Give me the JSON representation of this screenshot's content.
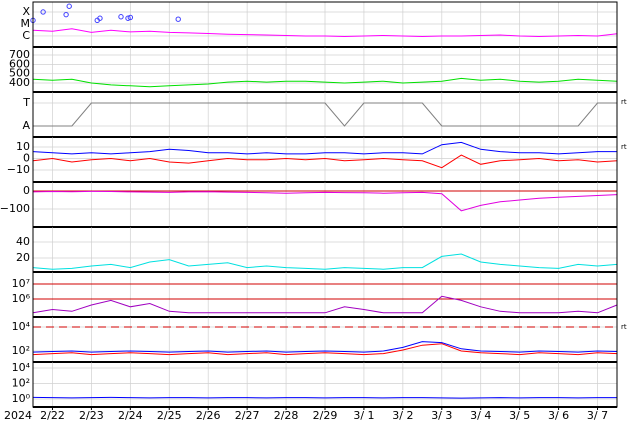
{
  "chart_data": [
    {
      "type": "line",
      "log_y": true,
      "ylim": [
        1.2e-07,
        0.00068
      ],
      "yticks": [
        {
          "value": 0.0001,
          "label": "X"
        },
        {
          "value": 1e-05,
          "label": "M"
        },
        {
          "value": 1e-06,
          "label": "C"
        }
      ],
      "x": [
        0,
        0.5,
        1,
        1.5,
        2,
        2.5,
        3,
        3.5,
        4,
        4.5,
        5,
        5.5,
        6,
        6.5,
        7,
        7.5,
        8,
        8.5,
        9,
        9.5,
        10,
        10.5,
        11,
        11.5,
        12,
        12.5,
        13,
        13.5,
        14,
        14.5,
        15
      ],
      "series": [
        {
          "color": "#ff00ff",
          "values": [
            3e-06,
            2.5e-06,
            4e-06,
            2e-06,
            3e-06,
            2.2e-06,
            2.5e-06,
            2e-06,
            1.8e-06,
            1.6e-06,
            1.4e-06,
            1.3e-06,
            1.2e-06,
            1.1e-06,
            1e-06,
            1e-06,
            9e-07,
            1e-06,
            1.1e-06,
            1e-06,
            9e-07,
            1e-06,
            1e-06,
            1.1e-06,
            1.2e-06,
            1e-06,
            9e-07,
            1e-06,
            1.1e-06,
            1e-06,
            1.5e-06
          ]
        }
      ],
      "flares": {
        "color": "#4040ff",
        "x": [
          0,
          0.26,
          0.85,
          0.93,
          1.65,
          1.72,
          2.26,
          2.44,
          2.5,
          3.73
        ],
        "values": [
          2e-05,
          0.0001,
          6e-05,
          0.0003,
          2e-05,
          3e-05,
          4e-05,
          3e-05,
          3.5e-05,
          2.5e-05
        ]
      }
    },
    {
      "type": "line",
      "ylim": [
        304,
        786
      ],
      "yticks": [
        700,
        600,
        500,
        400
      ],
      "x": [
        0,
        0.5,
        1,
        1.5,
        2,
        2.5,
        3,
        3.5,
        4,
        4.5,
        5,
        5.5,
        6,
        6.5,
        7,
        7.5,
        8,
        8.5,
        9,
        9.5,
        10,
        10.5,
        11,
        11.5,
        12,
        12.5,
        13,
        13.5,
        14,
        14.5,
        15
      ],
      "series": [
        {
          "color": "#00e000",
          "values": [
            440,
            430,
            440,
            400,
            380,
            370,
            360,
            370,
            380,
            390,
            410,
            420,
            410,
            420,
            420,
            410,
            400,
            410,
            420,
            400,
            410,
            420,
            450,
            430,
            440,
            420,
            410,
            420,
            440,
            430,
            420
          ]
        }
      ]
    },
    {
      "type": "line",
      "ylim": [
        -0.48,
        1.48
      ],
      "side_label": "rt",
      "yticks": [
        {
          "value": 1,
          "label": "T"
        },
        {
          "value": 0,
          "label": "A"
        }
      ],
      "x": [
        0,
        0.5,
        1,
        1.5,
        2,
        2.5,
        3,
        3.5,
        4,
        4.5,
        5,
        5.5,
        6,
        6.5,
        7,
        7.5,
        8,
        8.5,
        9,
        9.5,
        10,
        10.5,
        11,
        11.5,
        12,
        12.5,
        13,
        13.5,
        14,
        14.5,
        15
      ],
      "series": [
        {
          "color": "#808080",
          "values": [
            0,
            0,
            0,
            1,
            1,
            1,
            1,
            1,
            1,
            1,
            1,
            1,
            1,
            1,
            1,
            1,
            0,
            1,
            1,
            1,
            1,
            0,
            0,
            0,
            0,
            0,
            0,
            0,
            0,
            1,
            1
          ]
        }
      ]
    },
    {
      "type": "line",
      "ylim": [
        -20.4,
        18.7
      ],
      "side_label": "rt",
      "yticks": [
        10,
        0,
        {
          "value": -10,
          "label": "−10"
        }
      ],
      "x": [
        0,
        0.5,
        1,
        1.5,
        2,
        2.5,
        3,
        3.5,
        4,
        4.5,
        5,
        5.5,
        6,
        6.5,
        7,
        7.5,
        8,
        8.5,
        9,
        9.5,
        10,
        10.5,
        11,
        11.5,
        12,
        12.5,
        13,
        13.5,
        14,
        14.5,
        15
      ],
      "series": [
        {
          "color": "#0000ff",
          "values": [
            6,
            5,
            4,
            5,
            4,
            5,
            6,
            8,
            7,
            5,
            5,
            4,
            5,
            4,
            4,
            5,
            5,
            4,
            5,
            5,
            4,
            12,
            14,
            8,
            6,
            5,
            5,
            4,
            5,
            6,
            6
          ]
        },
        {
          "color": "#ff0000",
          "values": [
            -2,
            0,
            -3,
            -1,
            0,
            -2,
            0,
            -3,
            -4,
            -2,
            0,
            -1,
            -1,
            0,
            -1,
            0,
            -2,
            -1,
            0,
            -1,
            -2,
            -8,
            3,
            -5,
            -2,
            -1,
            0,
            -2,
            -1,
            -3,
            -2
          ]
        }
      ]
    },
    {
      "type": "line",
      "ylim": [
        -200,
        50
      ],
      "yticks": [
        0,
        {
          "value": -100,
          "label": "−100"
        }
      ],
      "ref_lines": [
        {
          "value": 0,
          "color": "#d00000"
        }
      ],
      "x": [
        0,
        0.5,
        1,
        1.5,
        2,
        2.5,
        3,
        3.5,
        4,
        4.5,
        5,
        5.5,
        6,
        6.5,
        7,
        7.5,
        8,
        8.5,
        9,
        9.5,
        10,
        10.5,
        11,
        11.5,
        12,
        12.5,
        13,
        13.5,
        14,
        14.5,
        15
      ],
      "series": [
        {
          "color": "#e000e0",
          "values": [
            -5,
            -3,
            -4,
            -2,
            -3,
            -5,
            -6,
            -8,
            -5,
            -4,
            -6,
            -8,
            -10,
            -12,
            -10,
            -8,
            -9,
            -10,
            -12,
            -10,
            -8,
            -15,
            -110,
            -80,
            -60,
            -50,
            -40,
            -35,
            -30,
            -25,
            -20
          ]
        }
      ]
    },
    {
      "type": "line",
      "ylim": [
        2.5,
        58.75
      ],
      "yticks": [
        40,
        20
      ],
      "x": [
        0,
        0.5,
        1,
        1.5,
        2,
        2.5,
        3,
        3.5,
        4,
        4.5,
        5,
        5.5,
        6,
        6.5,
        7,
        7.5,
        8,
        8.5,
        9,
        9.5,
        10,
        10.5,
        11,
        11.5,
        12,
        12.5,
        13,
        13.5,
        14,
        14.5,
        15
      ],
      "series": [
        {
          "color": "#00e0e0",
          "values": [
            8,
            6,
            7,
            10,
            12,
            8,
            15,
            18,
            10,
            12,
            14,
            8,
            10,
            8,
            7,
            6,
            8,
            7,
            6,
            8,
            8,
            22,
            25,
            15,
            12,
            10,
            8,
            7,
            12,
            10,
            12
          ]
        }
      ]
    },
    {
      "type": "line",
      "log_y": true,
      "ylim": [
        63000,
        63000000
      ],
      "yticks": [
        {
          "value": 10000000,
          "label": "10⁷"
        },
        {
          "value": 1000000,
          "label": "10⁶"
        }
      ],
      "ref_lines": [
        {
          "value": 10000000,
          "color": "#d00000"
        },
        {
          "value": 1000000,
          "color": "#d00000"
        }
      ],
      "x": [
        0,
        0.5,
        1,
        1.5,
        2,
        2.5,
        3,
        3.5,
        4,
        4.5,
        5,
        5.5,
        6,
        6.5,
        7,
        7.5,
        8,
        8.5,
        9,
        9.5,
        10,
        10.5,
        11,
        11.5,
        12,
        12.5,
        13,
        13.5,
        14,
        14.5,
        15
      ],
      "series": [
        {
          "color": "#a000c0",
          "values": [
            120000,
            200000,
            150000,
            400000,
            800000,
            300000,
            500000,
            150000,
            120000,
            120000,
            120000,
            120000,
            120000,
            120000,
            120000,
            120000,
            300000,
            200000,
            120000,
            120000,
            120000,
            1500000,
            800000,
            300000,
            150000,
            120000,
            120000,
            120000,
            150000,
            120000,
            400000
          ]
        }
      ]
    },
    {
      "type": "line",
      "log_y": true,
      "ylim": [
        12,
        68000
      ],
      "side_label": "rt",
      "yticks": [
        {
          "value": 10000,
          "label": "10⁴"
        },
        {
          "value": 100,
          "label": "10²"
        }
      ],
      "ref_lines": [
        {
          "value": 10000,
          "color": "#d00000",
          "dashed": true
        }
      ],
      "x": [
        0,
        0.5,
        1,
        1.5,
        2,
        2.5,
        3,
        3.5,
        4,
        4.5,
        5,
        5.5,
        6,
        6.5,
        7,
        7.5,
        8,
        8.5,
        9,
        9.5,
        10,
        10.5,
        11,
        11.5,
        12,
        12.5,
        13,
        13.5,
        14,
        14.5,
        15
      ],
      "series": [
        {
          "color": "#0000ff",
          "values": [
            80,
            90,
            100,
            80,
            90,
            100,
            90,
            80,
            90,
            100,
            80,
            90,
            100,
            80,
            90,
            100,
            90,
            80,
            100,
            200,
            600,
            500,
            150,
            100,
            90,
            80,
            100,
            90,
            80,
            100,
            90
          ]
        },
        {
          "color": "#ff0000",
          "values": [
            50,
            60,
            70,
            50,
            60,
            70,
            60,
            50,
            60,
            70,
            50,
            60,
            70,
            50,
            60,
            70,
            60,
            50,
            60,
            120,
            300,
            400,
            100,
            70,
            60,
            50,
            70,
            60,
            50,
            70,
            60
          ]
        }
      ]
    },
    {
      "type": "line",
      "log_y": true,
      "ylim": [
        0.093,
        59000
      ],
      "yticks": [
        {
          "value": 10000,
          "label": "10⁴"
        },
        {
          "value": 100,
          "label": "10²"
        },
        {
          "value": 1,
          "label": "10⁰"
        }
      ],
      "year_label": "2024",
      "xlim": [
        0,
        15
      ],
      "xticks": [
        {
          "value": 0.5,
          "label": "2/22"
        },
        {
          "value": 1.5,
          "label": "2/23"
        },
        {
          "value": 2.5,
          "label": "2/24"
        },
        {
          "value": 3.5,
          "label": "2/25"
        },
        {
          "value": 4.5,
          "label": "2/26"
        },
        {
          "value": 5.5,
          "label": "2/27"
        },
        {
          "value": 6.5,
          "label": "2/28"
        },
        {
          "value": 7.5,
          "label": "2/29"
        },
        {
          "value": 8.5,
          "label": "3/ 1"
        },
        {
          "value": 9.5,
          "label": "3/ 2"
        },
        {
          "value": 10.5,
          "label": "3/ 3"
        },
        {
          "value": 11.5,
          "label": "3/ 4"
        },
        {
          "value": 12.5,
          "label": "3/ 5"
        },
        {
          "value": 13.5,
          "label": "3/ 6"
        },
        {
          "value": 14.5,
          "label": "3/ 7"
        }
      ],
      "x": [
        0,
        0.5,
        1,
        1.5,
        2,
        2.5,
        3,
        3.5,
        4,
        4.5,
        5,
        5.5,
        6,
        6.5,
        7,
        7.5,
        8,
        8.5,
        9,
        9.5,
        10,
        10.5,
        11,
        11.5,
        12,
        12.5,
        13,
        13.5,
        14,
        14.5,
        15
      ],
      "series": [
        {
          "color": "#0000ff",
          "values": [
            1.6,
            1.5,
            1.4,
            1.5,
            1.6,
            1.5,
            1.4,
            1.5,
            1.5,
            1.4,
            1.5,
            1.5,
            1.4,
            1.5,
            1.5,
            1.4,
            1.5,
            1.5,
            1.4,
            1.5,
            1.5,
            1.4,
            1.3,
            1.4,
            1.5,
            1.4,
            1.5,
            1.5,
            1.4,
            1.5,
            1.5
          ]
        }
      ]
    }
  ]
}
